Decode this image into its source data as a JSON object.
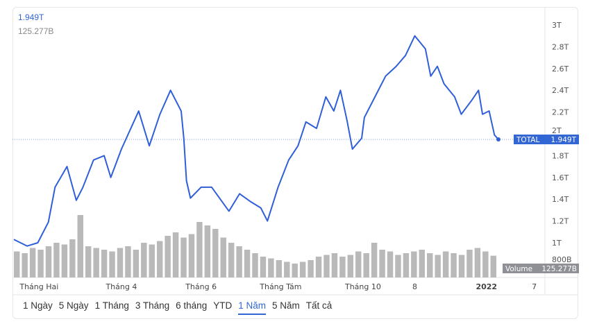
{
  "header": {
    "price": "1.949T",
    "volume": "125.277B"
  },
  "colors": {
    "line": "#2f5fd8",
    "accent": "#3166d4",
    "volume_bar": "#b9b9b9",
    "volume_badge": "#8e9096"
  },
  "chart_data": {
    "type": "line",
    "title": "",
    "price_series": {
      "name": "TOTAL",
      "last_label": "1.949T",
      "x_days": [
        0,
        10,
        18,
        26,
        31,
        40,
        47,
        52,
        60,
        68,
        73,
        81,
        94,
        102,
        110,
        118,
        126,
        128,
        130,
        133,
        141,
        149,
        162,
        170,
        178,
        186,
        191,
        199,
        207,
        214,
        220,
        228,
        235,
        241,
        246,
        251,
        255,
        262,
        264,
        272,
        280,
        288,
        295,
        302,
        310,
        314,
        319,
        324,
        332,
        337,
        345,
        350,
        353,
        358,
        362,
        365
      ],
      "values": [
        1.03,
        0.97,
        1.0,
        1.19,
        1.51,
        1.7,
        1.39,
        1.51,
        1.76,
        1.8,
        1.6,
        1.86,
        2.21,
        1.89,
        2.18,
        2.4,
        2.21,
        1.96,
        1.57,
        1.41,
        1.51,
        1.51,
        1.29,
        1.45,
        1.38,
        1.32,
        1.2,
        1.51,
        1.76,
        1.89,
        2.11,
        2.05,
        2.34,
        2.21,
        2.4,
        2.12,
        1.86,
        1.96,
        2.15,
        2.34,
        2.53,
        2.62,
        2.72,
        2.9,
        2.78,
        2.53,
        2.62,
        2.46,
        2.34,
        2.18,
        2.31,
        2.4,
        2.18,
        2.21,
        1.99,
        1.949
      ]
    },
    "volume_series": {
      "name": "Volume",
      "last_label": "125.277B",
      "values": [
        150,
        140,
        170,
        160,
        180,
        200,
        190,
        220,
        360,
        180,
        170,
        160,
        150,
        170,
        180,
        160,
        200,
        190,
        210,
        240,
        260,
        230,
        250,
        320,
        300,
        280,
        230,
        200,
        180,
        160,
        140,
        120,
        110,
        100,
        90,
        80,
        90,
        100,
        120,
        130,
        140,
        120,
        130,
        150,
        140,
        200,
        160,
        150,
        130,
        140,
        150,
        160,
        140,
        130,
        150,
        140,
        130,
        160,
        170,
        150,
        125.277
      ]
    },
    "yaxis": {
      "ticks": [
        "3T",
        "2.8T",
        "2.6T",
        "2.4T",
        "2.2T",
        "2T",
        "1.8T",
        "1.6T",
        "1.4T",
        "1.2T",
        "1T",
        "800B"
      ],
      "tick_values": [
        3,
        2.8,
        2.6,
        2.4,
        2.2,
        2,
        1.8,
        1.6,
        1.4,
        1.2,
        1,
        0.8
      ],
      "ylim": [
        0.8,
        3.0
      ]
    },
    "xaxis": {
      "ticks": [
        {
          "label": "Tháng Hai",
          "day": 19
        },
        {
          "label": "Tháng 4",
          "day": 81
        },
        {
          "label": "Tháng 6",
          "day": 141
        },
        {
          "label": "Tháng Tám",
          "day": 201
        },
        {
          "label": "Tháng 10",
          "day": 263
        },
        {
          "label": "8",
          "day": 302
        },
        {
          "label": "2022",
          "day": 356,
          "bold": true
        },
        {
          "label": "7",
          "day": 392
        }
      ],
      "xlim": [
        0,
        400
      ]
    },
    "current_line_value": 1.949
  },
  "ranges": [
    {
      "label": "1 Ngày"
    },
    {
      "label": "5 Ngày"
    },
    {
      "label": "1 Tháng"
    },
    {
      "label": "3 Tháng"
    },
    {
      "label": "6 tháng"
    },
    {
      "label": "YTD"
    },
    {
      "label": "1 Năm",
      "active": true
    },
    {
      "label": "5 Năm"
    },
    {
      "label": "Tất cả"
    }
  ]
}
